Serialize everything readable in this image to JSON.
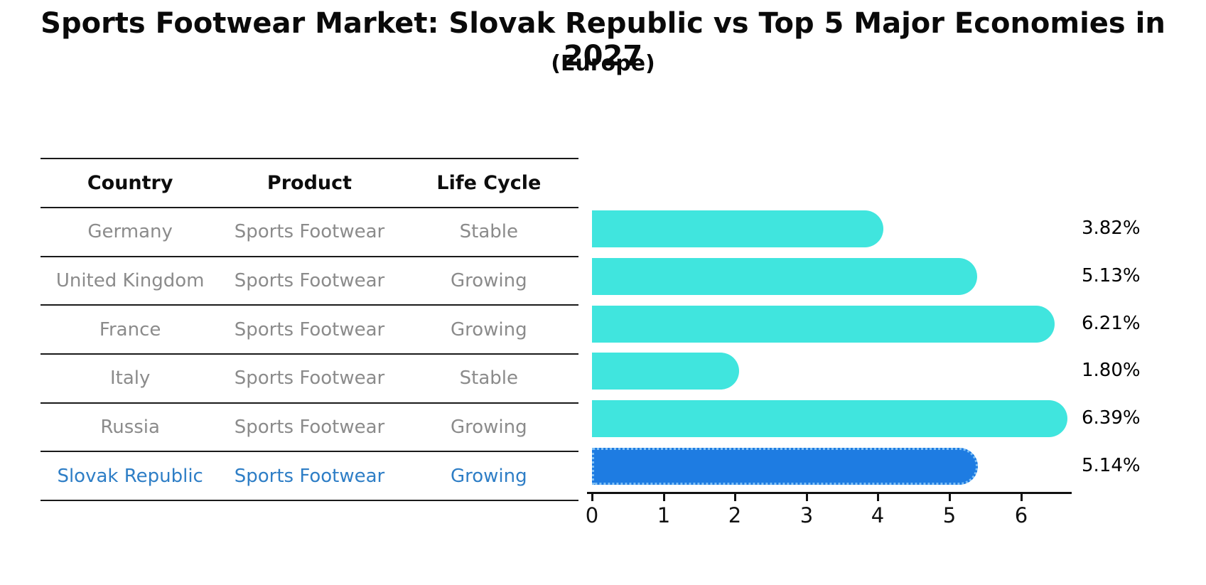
{
  "title": "Sports Footwear Market: Slovak Republic vs Top 5 Major Economies in 2027",
  "subtitle": "(Europe)",
  "table": {
    "headers": [
      "Country",
      "Product",
      "Life Cycle"
    ]
  },
  "chart_data": {
    "type": "bar",
    "orientation": "horizontal",
    "title": "Sports Footwear Market: Slovak Republic vs Top 5 Major Economies in 2027",
    "subtitle": "(Europe)",
    "categories": [
      "Germany",
      "United Kingdom",
      "France",
      "Italy",
      "Russia",
      "Slovak Republic"
    ],
    "values": [
      3.82,
      5.13,
      6.21,
      1.8,
      6.39,
      5.14
    ],
    "value_labels": [
      "3.82%",
      "5.13%",
      "6.21%",
      "1.80%",
      "6.39%",
      "5.14%"
    ],
    "rows": [
      {
        "country": "Germany",
        "product": "Sports Footwear",
        "life_cycle": "Stable",
        "value": 3.82,
        "label": "3.82%",
        "highlight": false
      },
      {
        "country": "United Kingdom",
        "product": "Sports Footwear",
        "life_cycle": "Growing",
        "value": 5.13,
        "label": "5.13%",
        "highlight": false
      },
      {
        "country": "France",
        "product": "Sports Footwear",
        "life_cycle": "Growing",
        "value": 6.21,
        "label": "6.21%",
        "highlight": false
      },
      {
        "country": "Italy",
        "product": "Sports Footwear",
        "life_cycle": "Stable",
        "value": 1.8,
        "label": "1.80%",
        "highlight": false
      },
      {
        "country": "Russia",
        "product": "Sports Footwear",
        "life_cycle": "Growing",
        "value": 6.39,
        "label": "6.39%",
        "highlight": false
      },
      {
        "country": "Slovak Republic",
        "product": "Sports Footwear",
        "life_cycle": "Growing",
        "value": 5.14,
        "label": "5.14%",
        "highlight": true
      }
    ],
    "xlabel": "",
    "ylabel": "",
    "xlim": [
      0,
      6.78
    ],
    "xticks": [
      "0",
      "1",
      "2",
      "3",
      "4",
      "5",
      "6"
    ],
    "grid": false,
    "legend": "none",
    "colors": {
      "bar": "#40e5de",
      "highlight_bar": "#1e7ce2",
      "highlight_border": "#7fc0f5",
      "highlight_text": "#2e7ec6",
      "table_text": "#8b8b8b",
      "axis_text": "#111111"
    }
  }
}
